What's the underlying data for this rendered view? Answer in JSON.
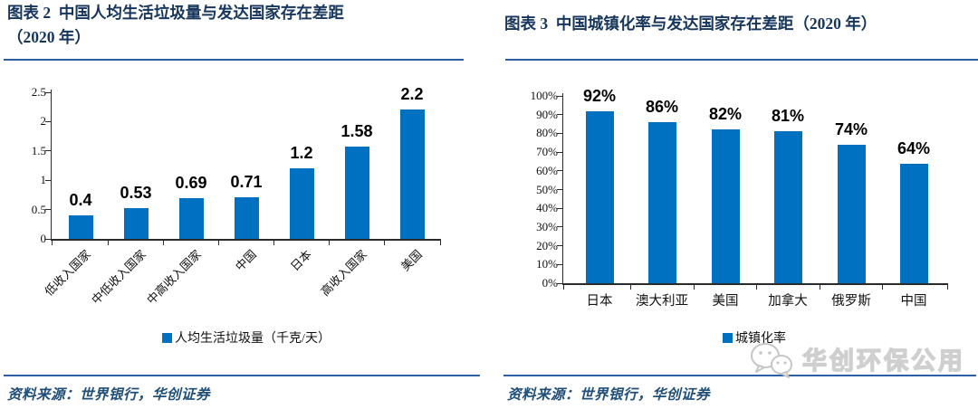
{
  "colors": {
    "bar": "#0070c0",
    "title": "#17365d",
    "rule": "#2e5fa3",
    "source_text": "#1f4e79",
    "axis": "#2b2b2b",
    "watermark": "#cfcfcf"
  },
  "left_panel": {
    "title_line1": "图表 2  中国人均生活垃圾量与发达国家存在差距",
    "title_line2": "（2020 年）",
    "source_text": "资料来源：世界银行，华创证券"
  },
  "right_panel": {
    "title": "图表 3  中国城镇化率与发达国家存在差距（2020 年）",
    "source_text": "资料来源：世界银行，华创证券"
  },
  "watermark": {
    "text": "华创环保公用",
    "icon": "wechat-icon"
  },
  "chart_data": [
    {
      "type": "bar",
      "title": "图表 2 中国人均生活垃圾量与发达国家存在差距（2020 年）",
      "categories": [
        "低收入国家",
        "中低收入国家",
        "中高收入国家",
        "中国",
        "日本",
        "高收入国家",
        "美国"
      ],
      "values": [
        0.4,
        0.53,
        0.69,
        0.71,
        1.2,
        1.58,
        2.2
      ],
      "value_labels": [
        "0.4",
        "0.53",
        "0.69",
        "0.71",
        "1.2",
        "1.58",
        "2.2"
      ],
      "legend": "人均生活垃圾量（千克/天）",
      "legend_position": "bottom",
      "xlabel": "",
      "ylabel": "",
      "ylim": [
        0,
        2.5
      ],
      "yticks": [
        0,
        0.5,
        1,
        1.5,
        2,
        2.5
      ],
      "ytick_labels": [
        "0",
        "0.5",
        "1",
        "1.5",
        "2",
        "2.5"
      ],
      "grid": false,
      "bar_color": "#0070c0"
    },
    {
      "type": "bar",
      "title": "图表 3 中国城镇化率与发达国家存在差距（2020 年）",
      "categories": [
        "日本",
        "澳大利亚",
        "美国",
        "加拿大",
        "俄罗斯",
        "中国"
      ],
      "values": [
        92,
        86,
        82,
        81,
        74,
        64
      ],
      "value_labels": [
        "92%",
        "86%",
        "82%",
        "81%",
        "74%",
        "64%"
      ],
      "legend": "城镇化率",
      "legend_position": "bottom",
      "xlabel": "",
      "ylabel": "",
      "ylim": [
        0,
        100
      ],
      "yticks": [
        0,
        10,
        20,
        30,
        40,
        50,
        60,
        70,
        80,
        90,
        100
      ],
      "ytick_labels": [
        "0%",
        "10%",
        "20%",
        "30%",
        "40%",
        "50%",
        "60%",
        "70%",
        "80%",
        "90%",
        "100%"
      ],
      "grid": false,
      "bar_color": "#0070c0"
    }
  ]
}
